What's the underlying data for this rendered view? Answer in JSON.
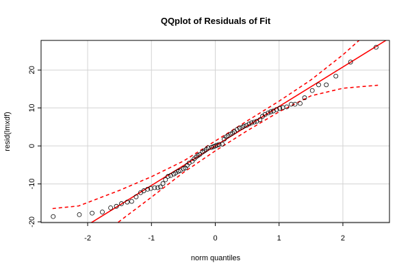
{
  "chart_data": {
    "type": "scatter",
    "title": "QQplot of Residuals of Fit",
    "x_label": "norm quantiles",
    "y_label": "resid(lmxdf)",
    "xlim": [
      -2.73,
      2.73
    ],
    "ylim": [
      -20.2,
      27.8
    ],
    "xticks": [
      -2,
      -1,
      0,
      1,
      2
    ],
    "yticks": [
      -20,
      -10,
      0,
      10,
      20
    ],
    "grid": true,
    "color": "#000000",
    "x": [
      -2.54,
      -2.13,
      -1.93,
      -1.77,
      -1.64,
      -1.55,
      -1.47,
      -1.38,
      -1.31,
      -1.24,
      -1.17,
      -1.12,
      -1.06,
      -1.01,
      -0.95,
      -0.9,
      -0.86,
      -0.82,
      -0.78,
      -0.74,
      -0.7,
      -0.65,
      -0.62,
      -0.58,
      -0.55,
      -0.5,
      -0.47,
      -0.44,
      -0.41,
      -0.36,
      -0.33,
      -0.3,
      -0.27,
      -0.24,
      -0.2,
      -0.17,
      -0.14,
      -0.11,
      -0.06,
      -0.03,
      0,
      0.03,
      0.06,
      0.11,
      0.14,
      0.17,
      0.2,
      0.24,
      0.27,
      0.3,
      0.34,
      0.38,
      0.42,
      0.45,
      0.49,
      0.53,
      0.57,
      0.61,
      0.65,
      0.7,
      0.74,
      0.78,
      0.83,
      0.87,
      0.91,
      0.96,
      1.01,
      1.06,
      1.12,
      1.19,
      1.25,
      1.33,
      1.4,
      1.52,
      1.62,
      1.74,
      1.89,
      2.12,
      2.52
    ],
    "values": [
      -18.6,
      -18.1,
      -17.7,
      -17.4,
      -16.3,
      -15.9,
      -15.2,
      -14.8,
      -14.6,
      -13.4,
      -12.3,
      -11.8,
      -11.4,
      -11.2,
      -11,
      -11,
      -10.8,
      -9.9,
      -8.9,
      -8,
      -7.8,
      -7.4,
      -7.1,
      -6.7,
      -6.5,
      -6,
      -5.8,
      -5.1,
      -4.5,
      -4,
      -3.4,
      -2.9,
      -2.5,
      -2.2,
      -1.6,
      -1.3,
      -0.9,
      -0.5,
      -0.4,
      -0.2,
      0,
      0.2,
      0.4,
      0.5,
      1.8,
      2.4,
      2.7,
      3.1,
      3.4,
      3.8,
      4.3,
      4.7,
      4.9,
      5.2,
      5.4,
      5.8,
      6.1,
      6.3,
      6.5,
      6.9,
      7.8,
      8.3,
      8.7,
      9,
      9.2,
      9.6,
      9.9,
      10.1,
      10.3,
      11,
      11,
      11.2,
      12.7,
      14.6,
      16.1,
      16.1,
      18.4,
      22.1,
      26
    ],
    "fit_line": {
      "intercept": 0,
      "slope": 10.4,
      "color": "#ff0000"
    },
    "envelope": {
      "color": "#ff0000",
      "upper": {
        "x": [
          -2.55,
          -2.14,
          -1.5,
          -1,
          -0.5,
          0,
          0.5,
          1,
          1.5,
          2,
          2.3
        ],
        "values": [
          -16.5,
          -15.8,
          -11.7,
          -8.1,
          -4,
          1.3,
          6.6,
          11.8,
          17.4,
          24,
          28.5
        ]
      },
      "lower": {
        "x": [
          -1.6,
          -1.53,
          -1,
          -0.5,
          0,
          0.5,
          1,
          1.5,
          2,
          2.55
        ],
        "values": [
          -21,
          -20.2,
          -13.5,
          -7,
          -1.3,
          4,
          9,
          13.2,
          15.2,
          16
        ]
      }
    }
  }
}
